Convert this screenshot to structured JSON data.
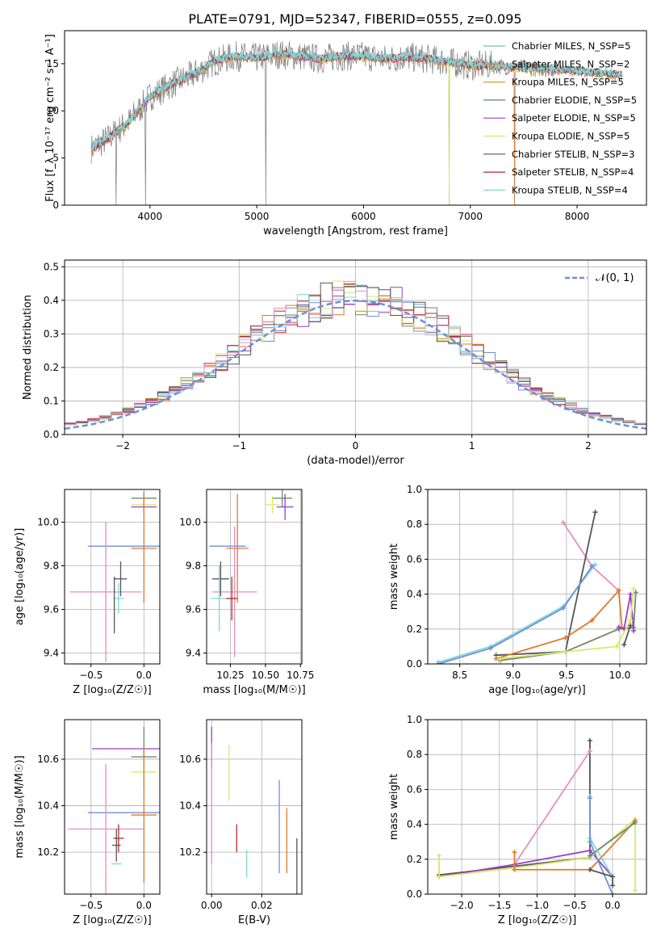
{
  "figure_title": "PLATE=0791, MJD=52347, FIBERID=0555, z=0.095",
  "colors": [
    "#6e8a6e",
    "#9a3fc7",
    "#d9e86a",
    "#555555",
    "#b52a2a",
    "#7fd6d6",
    "#e38fbf",
    "#6f8fd8",
    "#e07a2a"
  ],
  "chart_data": [
    {
      "type": "line",
      "id": "spectrum",
      "title": "PLATE=0791, MJD=52347, FIBERID=0555, z=0.095",
      "xlabel": "wavelength [Angstrom, rest frame]",
      "ylabel": "Flux [f_λ 10⁻¹⁷ erg cm⁻² s⁻¹ A⁻¹]",
      "xlim": [
        3200,
        8650
      ],
      "ylim": [
        0,
        18.5
      ],
      "xticks": [
        "4000",
        "5000",
        "6000",
        "7000",
        "8000"
      ],
      "yticks": [
        "0",
        "5",
        "10",
        "15"
      ],
      "legend_position": "top-right",
      "legend": [
        "Chabrier MILES, N_SSP=5",
        "Salpeter MILES, N_SSP=2",
        "Kroupa MILES, N_SSP=5",
        "Chabrier ELODIE, N_SSP=5",
        "Salpeter ELODIE, N_SSP=5",
        "Kroupa ELODIE, N_SSP=5",
        "Chabrier STELIB, N_SSP=3",
        "Salpeter STELIB, N_SSP=4",
        "Kroupa STELIB, N_SSP=4"
      ],
      "legend_colors": [
        "#6fbfbf",
        "#e07a2a",
        "#c7a12a",
        "#5c8a5c",
        "#9a3fc7",
        "#d9e86a",
        "#555555",
        "#b52a2a",
        "#7fd6d6"
      ],
      "continuum": {
        "x": [
          3450,
          3600,
          3800,
          4000,
          4200,
          4400,
          4600,
          4800,
          5000,
          5200,
          5400,
          5600,
          5800,
          6000,
          6200,
          6400,
          6600,
          6800,
          7000,
          7200,
          7400,
          7600,
          7800,
          8000,
          8200,
          8400
        ],
        "y": [
          6,
          7,
          8.8,
          11.5,
          12.8,
          13.8,
          15.2,
          15.8,
          15.6,
          16,
          15.8,
          15.5,
          15.8,
          15.8,
          15.5,
          15.7,
          15.5,
          15.2,
          14.8,
          14.8,
          14.6,
          14.5,
          14.4,
          14.2,
          14,
          13.8
        ]
      },
      "dips": [
        {
          "x": 3680,
          "y": 0
        },
        {
          "x": 3960,
          "y": 0
        },
        {
          "x": 5085,
          "y": 0
        },
        {
          "x": 6800,
          "y": 0
        },
        {
          "x": 7415,
          "y": 0
        }
      ]
    },
    {
      "type": "histogram",
      "id": "residuals",
      "xlabel": "(data-model)/error",
      "ylabel": "Normed distribution",
      "xlim": [
        -2.5,
        2.5
      ],
      "ylim": [
        0,
        0.52
      ],
      "xticks": [
        "−2",
        "−1",
        "0",
        "1",
        "2"
      ],
      "yticks": [
        "0.0",
        "0.1",
        "0.2",
        "0.3",
        "0.4",
        "0.5"
      ],
      "legend_position": "top-right",
      "legend": [
        "𝒩(0, 1)"
      ],
      "bin_width": 0.1,
      "gauss_sigma": 1.0
    },
    {
      "type": "scatter",
      "id": "age-vs-Z",
      "xlabel": "Z [log₁₀(Z/Z☉)]",
      "ylabel": "age  [log₁₀(age/yr)]",
      "xlim": [
        -0.75,
        0.15
      ],
      "ylim": [
        9.35,
        10.15
      ],
      "xticks": [
        "−0.5",
        "0.0"
      ],
      "yticks": [
        "9.4",
        "9.6",
        "9.8",
        "10.0"
      ],
      "errorbars": [
        {
          "x": 0.0,
          "y": 10.11,
          "xerr": 0.12,
          "yerr": 0.03,
          "c": 0
        },
        {
          "x": 0.0,
          "y": 10.08,
          "xerr": 0.12,
          "yerr": 0.03,
          "c": 2
        },
        {
          "x": 0.0,
          "y": 10.07,
          "xerr": 0.12,
          "yerr": 0.03,
          "c": 1
        },
        {
          "x": -0.1,
          "y": 9.89,
          "xerr": 0.43,
          "yerr": 0.0,
          "c": 7
        },
        {
          "x": 0.0,
          "y": 9.88,
          "xerr": 0.12,
          "yerr": 0.25,
          "c": 8
        },
        {
          "x": -0.36,
          "y": 9.68,
          "xerr": 0.34,
          "yerr": 0.32,
          "c": 6
        },
        {
          "x": -0.22,
          "y": 9.74,
          "xerr": 0.06,
          "yerr": 0.08,
          "c": 3
        },
        {
          "x": -0.24,
          "y": 9.65,
          "xerr": 0.05,
          "yerr": 0.07,
          "c": 5
        },
        {
          "x": -0.28,
          "y": 9.62,
          "xerr": 0.0,
          "yerr": 0.13,
          "c": 3
        }
      ]
    },
    {
      "type": "scatter",
      "id": "age-vs-mass",
      "xlabel": "mass [log₁₀(M/M☉)]",
      "ylabel": "",
      "xlim": [
        10.08,
        10.76
      ],
      "ylim": [
        9.35,
        10.15
      ],
      "xticks": [
        "10.25",
        "10.50",
        "10.75"
      ],
      "yticks": [
        "9.4",
        "9.6",
        "9.8",
        "10.0"
      ],
      "errorbars": [
        {
          "x": 10.62,
          "y": 10.11,
          "xerr": 0.07,
          "yerr": 0.04,
          "c": 0
        },
        {
          "x": 10.64,
          "y": 10.07,
          "xerr": 0.06,
          "yerr": 0.06,
          "c": 1
        },
        {
          "x": 10.55,
          "y": 10.08,
          "xerr": 0.05,
          "yerr": 0.04,
          "c": 2
        },
        {
          "x": 10.23,
          "y": 9.89,
          "xerr": 0.13,
          "yerr": 0.0,
          "c": 7
        },
        {
          "x": 10.3,
          "y": 9.88,
          "xerr": 0.08,
          "yerr": 0.25,
          "c": 8
        },
        {
          "x": 10.28,
          "y": 9.68,
          "xerr": 0.16,
          "yerr": 0.3,
          "c": 6
        },
        {
          "x": 10.18,
          "y": 9.74,
          "xerr": 0.06,
          "yerr": 0.08,
          "c": 3
        },
        {
          "x": 10.17,
          "y": 9.65,
          "xerr": 0.06,
          "yerr": 0.15,
          "c": 5
        },
        {
          "x": 10.26,
          "y": 9.65,
          "xerr": 0.04,
          "yerr": 0.1,
          "c": 4
        }
      ]
    },
    {
      "type": "line",
      "id": "weight-vs-age",
      "xlabel": "age  [log₁₀(age/yr)]",
      "ylabel": "mass weight",
      "xlim": [
        8.2,
        10.25
      ],
      "ylim": [
        0,
        1.0
      ],
      "xticks": [
        "8.5",
        "9.0",
        "9.5",
        "10.0"
      ],
      "yticks": [
        "0.0",
        "0.2",
        "0.4",
        "0.6",
        "0.8",
        "1.0"
      ],
      "series": [
        {
          "c": 6,
          "x": [
            9.47,
            9.74,
            9.99
          ],
          "y": [
            0.81,
            0.56,
            0.42
          ]
        },
        {
          "c": 3,
          "x": [
            8.84,
            9.49,
            9.77
          ],
          "y": [
            0.05,
            0.07,
            0.87
          ]
        },
        {
          "c": 5,
          "x": [
            8.3,
            8.79,
            9.47,
            9.77
          ],
          "y": [
            0.01,
            0.1,
            0.33,
            0.57
          ]
        },
        {
          "c": 7,
          "x": [
            8.3,
            8.79,
            9.47,
            9.74
          ],
          "y": [
            0.0,
            0.09,
            0.32,
            0.56
          ]
        },
        {
          "c": 8,
          "x": [
            8.84,
            9.49,
            9.74,
            9.99,
            10.02
          ],
          "y": [
            0.03,
            0.15,
            0.25,
            0.42,
            0.21
          ]
        },
        {
          "c": 0,
          "x": [
            8.88,
            9.49,
            9.99,
            10.13,
            10.15
          ],
          "y": [
            0.02,
            0.07,
            0.2,
            0.21,
            0.41
          ]
        },
        {
          "c": 1,
          "x": [
            9.99,
            10.04,
            10.1,
            10.13
          ],
          "y": [
            0.21,
            0.2,
            0.4,
            0.19
          ]
        },
        {
          "c": 2,
          "x": [
            8.88,
            9.49,
            9.97,
            10.1,
            10.13
          ],
          "y": [
            0.03,
            0.07,
            0.1,
            0.25,
            0.43
          ]
        },
        {
          "c": 3,
          "x": [
            10.04,
            10.1
          ],
          "y": [
            0.11,
            0.22
          ]
        }
      ]
    },
    {
      "type": "scatter",
      "id": "mass-vs-Z",
      "xlabel": "Z [log₁₀(Z/Z☉)]",
      "ylabel": "mass [log₁₀(M/M☉)]",
      "xlim": [
        -0.75,
        0.15
      ],
      "ylim": [
        10.02,
        10.77
      ],
      "xticks": [
        "−0.5",
        "0.0"
      ],
      "yticks": [
        "10.2",
        "10.4",
        "10.6"
      ],
      "errorbars": [
        {
          "x": -0.06,
          "y": 10.645,
          "xerr": 0.43,
          "yerr": 0.0,
          "c": 1
        },
        {
          "x": 0.0,
          "y": 10.61,
          "xerr": 0.12,
          "yerr": 0.13,
          "c": 0
        },
        {
          "x": 0.0,
          "y": 10.545,
          "xerr": 0.12,
          "yerr": 0.06,
          "c": 2
        },
        {
          "x": -0.1,
          "y": 10.37,
          "xerr": 0.43,
          "yerr": 0.0,
          "c": 7
        },
        {
          "x": 0.0,
          "y": 10.36,
          "xerr": 0.12,
          "yerr": 0.29,
          "c": 8
        },
        {
          "x": -0.36,
          "y": 10.3,
          "xerr": 0.36,
          "yerr": 0.28,
          "c": 6
        },
        {
          "x": -0.24,
          "y": 10.26,
          "xerr": 0.05,
          "yerr": 0.06,
          "c": 4
        },
        {
          "x": -0.26,
          "y": 10.23,
          "xerr": 0.04,
          "yerr": 0.07,
          "c": 3
        },
        {
          "x": -0.26,
          "y": 10.15,
          "xerr": 0.05,
          "yerr": 0.0,
          "c": 5
        }
      ]
    },
    {
      "type": "scatter",
      "id": "mass-vs-ebv",
      "xlabel": "E(B-V)",
      "ylabel": "",
      "xlim": [
        -0.002,
        0.036
      ],
      "ylim": [
        10.02,
        10.77
      ],
      "xticks": [
        "0.00",
        "0.02"
      ],
      "yticks": [
        "10.2",
        "10.4",
        "10.6"
      ],
      "errorbars": [
        {
          "x": 0.0,
          "y": 10.65,
          "xerr": 0.0,
          "yerr": 0.09,
          "c": 1
        },
        {
          "x": 0.0,
          "y": 10.41,
          "xerr": 0.0,
          "yerr": 0.26,
          "c": 6
        },
        {
          "x": 0.007,
          "y": 10.54,
          "xerr": 0.0,
          "yerr": 0.12,
          "c": 2
        },
        {
          "x": 0.01,
          "y": 10.26,
          "xerr": 0.0,
          "yerr": 0.06,
          "c": 4
        },
        {
          "x": 0.014,
          "y": 10.15,
          "xerr": 0.0,
          "yerr": 0.06,
          "c": 5
        },
        {
          "x": 0.027,
          "y": 10.31,
          "xerr": 0.0,
          "yerr": 0.2,
          "c": 7
        },
        {
          "x": 0.03,
          "y": 10.25,
          "xerr": 0.0,
          "yerr": 0.14,
          "c": 8
        },
        {
          "x": 0.034,
          "y": 10.13,
          "xerr": 0.0,
          "yerr": 0.13,
          "c": 3
        }
      ]
    },
    {
      "type": "line",
      "id": "weight-vs-Z",
      "xlabel": "Z [log₁₀(Z/Z☉)]",
      "ylabel": "mass weight",
      "xlim": [
        -2.45,
        0.45
      ],
      "ylim": [
        0,
        1.0
      ],
      "xticks": [
        "−2.0",
        "−1.5",
        "−1.0",
        "−0.5",
        "0.0"
      ],
      "yticks": [
        "0.0",
        "0.2",
        "0.4",
        "0.6",
        "0.8",
        "1.0"
      ],
      "series": [
        {
          "c": 3,
          "x": [
            -2.3,
            -0.3,
            -0.3
          ],
          "y": [
            0.11,
            0.21,
            0.88
          ]
        },
        {
          "c": 6,
          "x": [
            -1.3,
            -0.3
          ],
          "y": [
            0.17,
            0.82
          ]
        },
        {
          "c": 1,
          "x": [
            -2.3,
            -1.3,
            -0.3,
            0.0
          ],
          "y": [
            0.1,
            0.17,
            0.25,
            0.1
          ]
        },
        {
          "c": 2,
          "x": [
            -2.3,
            -2.3,
            -1.3,
            -0.3,
            0.3,
            0.3
          ],
          "y": [
            0.22,
            0.1,
            0.15,
            0.21,
            0.43,
            0.02
          ]
        },
        {
          "c": 8,
          "x": [
            -1.3,
            -1.3,
            -0.3,
            0.3
          ],
          "y": [
            0.24,
            0.14,
            0.14,
            0.42
          ]
        },
        {
          "c": 0,
          "x": [
            -0.3,
            0.3
          ],
          "y": [
            0.22,
            0.41
          ]
        },
        {
          "c": 5,
          "x": [
            -0.3,
            -0.3,
            0.0
          ],
          "y": [
            0.56,
            0.32,
            0.1
          ]
        },
        {
          "c": 7,
          "x": [
            -0.3,
            -0.3,
            0.0
          ],
          "y": [
            0.55,
            0.3,
            0.0
          ]
        },
        {
          "c": 3,
          "x": [
            -0.3,
            0.0,
            0.0
          ],
          "y": [
            0.14,
            0.1,
            0.05
          ]
        }
      ]
    }
  ]
}
